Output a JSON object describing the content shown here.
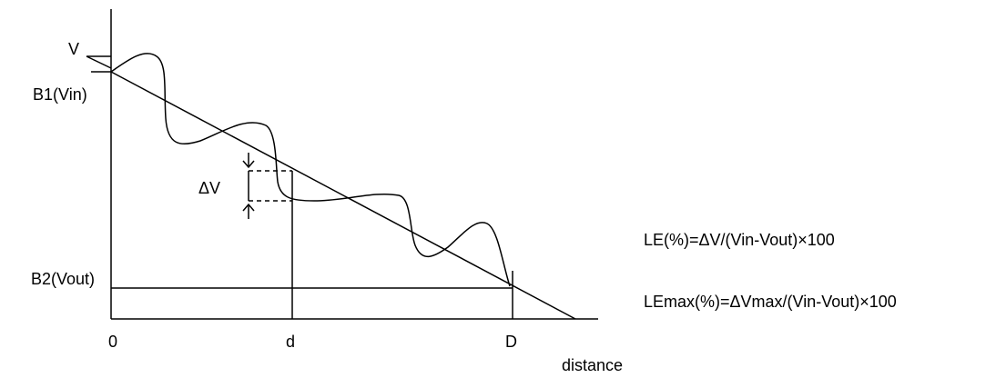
{
  "labels": {
    "v": "V",
    "b1": "B1(Vin)",
    "b2": "B2(Vout)",
    "delta_v": "ΔV",
    "x_zero": "0",
    "x_d": "d",
    "x_D": "D",
    "x_axis": "distance"
  },
  "formulas": {
    "le": "LE(%)=ΔV/(Vin-Vout)×100",
    "le_max": "LEmax(%)=ΔVmax/(Vin-Vout)×100"
  }
}
